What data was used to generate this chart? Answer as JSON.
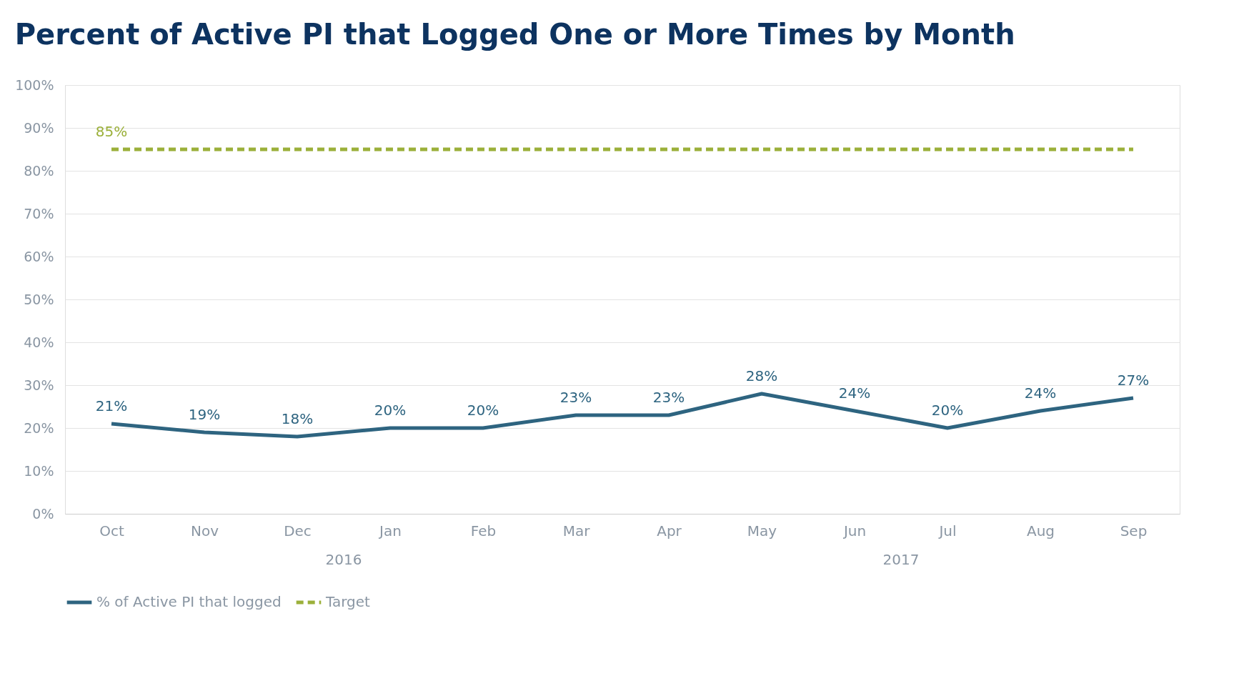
{
  "chart_data": {
    "type": "line",
    "title": "Percent of Active PI that Logged One or More Times by Month",
    "categories": [
      "Oct",
      "Nov",
      "Dec",
      "Jan",
      "Feb",
      "Mar",
      "Apr",
      "May",
      "Jun",
      "Jul",
      "Aug",
      "Sep"
    ],
    "series": [
      {
        "name": "% of Active PI that logged",
        "color": "#2e6480",
        "line_style": "solid",
        "values": [
          21,
          19,
          18,
          20,
          20,
          23,
          23,
          28,
          24,
          20,
          24,
          27
        ],
        "value_labels": [
          "21%",
          "19%",
          "18%",
          "20%",
          "20%",
          "23%",
          "23%",
          "28%",
          "24%",
          "20%",
          "24%",
          "27%"
        ]
      },
      {
        "name": "Target",
        "color": "#9bb03a",
        "line_style": "dashed",
        "values": [
          85,
          85,
          85,
          85,
          85,
          85,
          85,
          85,
          85,
          85,
          85,
          85
        ],
        "value_labels": [
          "85%",
          null,
          null,
          null,
          null,
          null,
          null,
          null,
          null,
          null,
          null,
          null
        ]
      }
    ],
    "ylim": [
      0,
      100
    ],
    "yticks": [
      {
        "value": 0,
        "label": "0%"
      },
      {
        "value": 10,
        "label": "10%"
      },
      {
        "value": 20,
        "label": "20%"
      },
      {
        "value": 30,
        "label": "30%"
      },
      {
        "value": 40,
        "label": "40%"
      },
      {
        "value": 50,
        "label": "50%"
      },
      {
        "value": 60,
        "label": "60%"
      },
      {
        "value": 70,
        "label": "70%"
      },
      {
        "value": 80,
        "label": "80%"
      },
      {
        "value": 90,
        "label": "90%"
      },
      {
        "value": 100,
        "label": "100%"
      }
    ],
    "annotations": [
      "2016",
      "2017"
    ],
    "grid": "y",
    "legend": "bottom",
    "marker": "none"
  }
}
